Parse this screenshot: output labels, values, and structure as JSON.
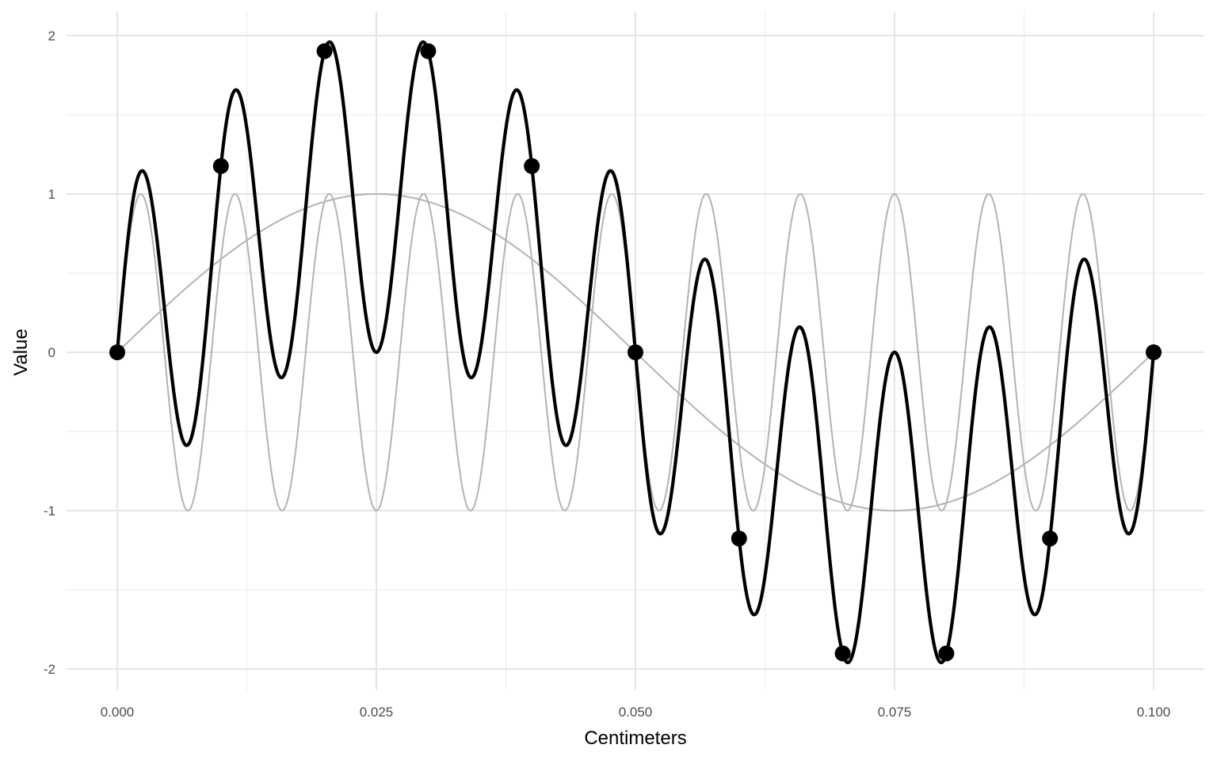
{
  "chart_data": {
    "type": "line",
    "title": "",
    "xlabel": "Centimeters",
    "ylabel": "Value",
    "xlim": [
      0,
      0.1
    ],
    "ylim": [
      -2,
      2
    ],
    "x_ticks": [
      0.0,
      0.025,
      0.05,
      0.075,
      0.1
    ],
    "x_tick_labels": [
      "0.000",
      "0.025",
      "0.050",
      "0.075",
      "0.100"
    ],
    "y_ticks": [
      -2,
      -1,
      0,
      1,
      2
    ],
    "y_tick_labels": [
      "-2",
      "-1",
      "0",
      "1",
      "2"
    ],
    "grid": true,
    "legend": "none",
    "series": [
      {
        "kind": "line",
        "color": "#b3b3b3",
        "function": "sin(2*pi*10*x)"
      },
      {
        "kind": "line",
        "color": "#b3b3b3",
        "function": "sin(2*pi*110*x)"
      },
      {
        "kind": "line",
        "color": "#000000",
        "function": "sin(2*pi*10*x) + sin(2*pi*110*x)"
      },
      {
        "kind": "points",
        "color": "#000000",
        "x": [
          0.0,
          0.01,
          0.02,
          0.03,
          0.04,
          0.05,
          0.06,
          0.07,
          0.08,
          0.09,
          0.1
        ],
        "y": [
          0.0,
          1.176,
          1.902,
          1.902,
          1.176,
          0.0,
          -1.176,
          -1.902,
          -1.902,
          -1.176,
          0.0
        ]
      }
    ]
  }
}
